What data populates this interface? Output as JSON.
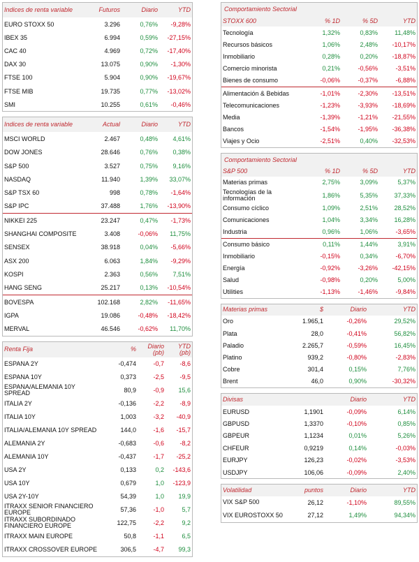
{
  "futures": {
    "headers": [
      "Índices de renta variable",
      "Futuros",
      "Diario",
      "YTD"
    ],
    "rows": [
      [
        "EURO STOXX 50",
        "3.296",
        "0,76%",
        "-9,28%"
      ],
      [
        "IBEX 35",
        "6.994",
        "0,59%",
        "-27,15%"
      ],
      [
        "CAC 40",
        "4.969",
        "0,72%",
        "-17,40%"
      ],
      [
        "DAX 30",
        "13.075",
        "0,90%",
        "-1,30%"
      ],
      [
        "FTSE 100",
        "5.904",
        "0,90%",
        "-19,67%"
      ],
      [
        "FTSE MIB",
        "19.735",
        "0,77%",
        "-13,02%"
      ],
      [
        "SMI",
        "10.255",
        "0,61%",
        "-0,46%"
      ]
    ]
  },
  "indices": {
    "headers": [
      "Índices de renta variable",
      "Actual",
      "Diario",
      "YTD"
    ],
    "rows": [
      [
        "MSCI WORLD",
        "2.467",
        "0,48%",
        "4,61%"
      ],
      [
        "DOW JONES",
        "28.646",
        "0,76%",
        "0,38%"
      ],
      [
        "S&P 500",
        "3.527",
        "0,75%",
        "9,16%"
      ],
      [
        "NASDAQ",
        "11.940",
        "1,39%",
        "33,07%"
      ],
      [
        "S&P TSX 60",
        "998",
        "0,78%",
        "-1,64%"
      ],
      [
        "S&P IPC",
        "37.488",
        "1,76%",
        "-13,90%"
      ],
      [
        "NIKKEI 225",
        "23.247",
        "0,47%",
        "-1,73%"
      ],
      [
        "SHANGHAI COMPOSITE",
        "3.408",
        "-0,06%",
        "11,75%"
      ],
      [
        "SENSEX",
        "38.918",
        "0,04%",
        "-5,66%"
      ],
      [
        "ASX 200",
        "6.063",
        "1,84%",
        "-9,29%"
      ],
      [
        "KOSPI",
        "2.363",
        "0,56%",
        "7,51%"
      ],
      [
        "HANG SENG",
        "25.217",
        "0,13%",
        "-10,54%"
      ],
      [
        "BOVESPA",
        "102.168",
        "2,82%",
        "-11,65%"
      ],
      [
        "IGPA",
        "19.086",
        "-0,48%",
        "-18,42%"
      ],
      [
        "MERVAL",
        "46.546",
        "-0,62%",
        "11,70%"
      ]
    ]
  },
  "fixed_income": {
    "headers": [
      "Renta Fija",
      "%",
      "Diario (pb)",
      "YTD (pb)"
    ],
    "rows": [
      [
        "ESPAÑA 2Y",
        "-0,474",
        "-0,7",
        "-8,6"
      ],
      [
        "ESPAÑA 10Y",
        "0,373",
        "-2,5",
        "-9,5"
      ],
      [
        "ESPAÑA/ALEMANIA 10Y SPREAD",
        "80,9",
        "-0,9",
        "15,6"
      ],
      [
        "ITALIA 2Y",
        "-0,136",
        "-2,2",
        "-8,9"
      ],
      [
        "ITALIA 10Y",
        "1,003",
        "-3,2",
        "-40,9"
      ],
      [
        "ITALIA/ALEMANIA 10Y SPREAD",
        "144,0",
        "-1,6",
        "-15,7"
      ],
      [
        "ALEMANIA 2Y",
        "-0,683",
        "-0,6",
        "-8,2"
      ],
      [
        "ALEMANIA 10Y",
        "-0,437",
        "-1,7",
        "-25,2"
      ],
      [
        "USA 2Y",
        "0,133",
        "0,2",
        "-143,6"
      ],
      [
        "USA 10Y",
        "0,679",
        "1,0",
        "-123,9"
      ],
      [
        "USA 2Y-10Y",
        "54,39",
        "1,0",
        "19,9"
      ],
      [
        "ITRAXX SENIOR FINANCIERO EUROPE",
        "57,36",
        "-1,0",
        "5,7"
      ],
      [
        "ITRAXX SUBORDINADO FINANCIERO EUROPE",
        "122,75",
        "-2,2",
        "9,2"
      ],
      [
        "ITRAXX MAIN EUROPE",
        "50,8",
        "-1,1",
        "6,5"
      ],
      [
        "ITRAXX CROSSOVER EUROPE",
        "306,5",
        "-4,7",
        "99,3"
      ]
    ]
  },
  "sector_stoxx": {
    "title": "Comportamiento Sectorial",
    "headers": [
      "STOXX 600",
      "% 1D",
      "% 5D",
      "YTD"
    ],
    "rows": [
      [
        "Tecnología",
        "1,32%",
        "0,83%",
        "11,48%"
      ],
      [
        "Recursos básicos",
        "1,06%",
        "2,48%",
        "-10,17%"
      ],
      [
        "Inmobiliario",
        "0,28%",
        "0,20%",
        "-18,87%"
      ],
      [
        "Comercio minorista",
        "0,21%",
        "-0,56%",
        "-3,51%"
      ],
      [
        "Bienes de consumo",
        "-0,06%",
        "-0,37%",
        "-6,88%"
      ],
      [
        "Alimentación & Bebidas",
        "-1,01%",
        "-2,30%",
        "-13,51%"
      ],
      [
        "Telecomunicaciones",
        "-1,23%",
        "-3,93%",
        "-18,69%"
      ],
      [
        "Media",
        "-1,39%",
        "-1,21%",
        "-21,55%"
      ],
      [
        "Bancos",
        "-1,54%",
        "-1,95%",
        "-36,38%"
      ],
      [
        "Viajes y Ocio",
        "-2,51%",
        "0,40%",
        "-32,53%"
      ]
    ]
  },
  "sector_sp": {
    "title": "Comportamiento Sectorial",
    "headers": [
      "S&P 500",
      "% 1D",
      "% 5D",
      "YTD"
    ],
    "rows": [
      [
        "Materias primas",
        "2,75%",
        "3,09%",
        "5,37%"
      ],
      [
        "Tecnologías de la información",
        "1,86%",
        "5,35%",
        "37,33%"
      ],
      [
        "Consumo cíclico",
        "1,09%",
        "2,51%",
        "28,52%"
      ],
      [
        "Comunicaciones",
        "1,04%",
        "3,34%",
        "16,28%"
      ],
      [
        "Industria",
        "0,96%",
        "1,06%",
        "-3,65%"
      ],
      [
        "Consumo básico",
        "0,11%",
        "1,44%",
        "3,91%"
      ],
      [
        "Inmobiliario",
        "-0,15%",
        "0,34%",
        "-6,70%"
      ],
      [
        "Energía",
        "-0,92%",
        "-3,26%",
        "-42,15%"
      ],
      [
        "Salud",
        "-0,98%",
        "0,20%",
        "5,00%"
      ],
      [
        "Utilities",
        "-1,13%",
        "-1,46%",
        "-9,84%"
      ]
    ]
  },
  "commodities": {
    "headers": [
      "Materias primas",
      "$",
      "Diario",
      "YTD"
    ],
    "rows": [
      [
        "Oro",
        "1.965,1",
        "-0,26%",
        "29,52%"
      ],
      [
        "Plata",
        "28,0",
        "-0,41%",
        "56,82%"
      ],
      [
        "Paladio",
        "2.265,7",
        "-0,59%",
        "16,45%"
      ],
      [
        "Platino",
        "939,2",
        "-0,80%",
        "-2,83%"
      ],
      [
        "Cobre",
        "301,4",
        "0,15%",
        "7,76%"
      ],
      [
        "Brent",
        "46,0",
        "0,90%",
        "-30,32%"
      ]
    ]
  },
  "fx": {
    "headers": [
      "Divisas",
      "",
      "Diario",
      "YTD"
    ],
    "rows": [
      [
        "EURUSD",
        "1,1901",
        "-0,09%",
        "6,14%"
      ],
      [
        "GBPUSD",
        "1,3370",
        "-0,10%",
        "0,85%"
      ],
      [
        "GBPEUR",
        "1,1234",
        "0,01%",
        "5,26%"
      ],
      [
        "CHFEUR",
        "0,9219",
        "0,14%",
        "-0,03%"
      ],
      [
        "EURJPY",
        "126,23",
        "-0,02%",
        "-3,53%"
      ],
      [
        "USDJPY",
        "106,06",
        "-0,09%",
        "2,40%"
      ]
    ]
  },
  "volatility": {
    "headers": [
      "Volatilidad",
      "puntos",
      "Diario",
      "YTD"
    ],
    "rows": [
      [
        "VIX S&P 500",
        "26,12",
        "-1,10%",
        "89,55%"
      ],
      [
        "VIX EUROSTOXX 50",
        "27,12",
        "1,49%",
        "94,34%"
      ]
    ]
  },
  "colors": {
    "accent": "#c0282f",
    "positive": "#1e8e3e",
    "negative": "#d0021b",
    "header_bg": "#f1f1f1"
  }
}
